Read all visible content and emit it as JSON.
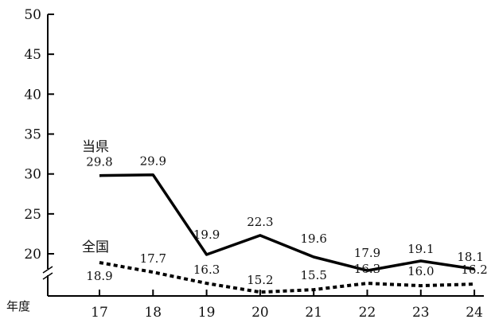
{
  "chart_data": {
    "type": "line",
    "x": [
      "17",
      "18",
      "19",
      "20",
      "21",
      "22",
      "23",
      "24"
    ],
    "xlabel": "年度",
    "ylabel": "",
    "y_ticks": [
      20,
      25,
      30,
      35,
      40,
      45,
      50
    ],
    "ylim": [
      14,
      50
    ],
    "axis_break": true,
    "grid": false,
    "series": [
      {
        "name": "当県",
        "style": "solid",
        "color": "#000000",
        "values": [
          29.8,
          29.9,
          19.9,
          22.3,
          19.6,
          17.9,
          19.1,
          18.1
        ]
      },
      {
        "name": "全国",
        "style": "dotted",
        "color": "#000000",
        "values": [
          18.9,
          17.7,
          16.3,
          15.2,
          15.5,
          16.3,
          16.0,
          16.2
        ]
      }
    ]
  }
}
